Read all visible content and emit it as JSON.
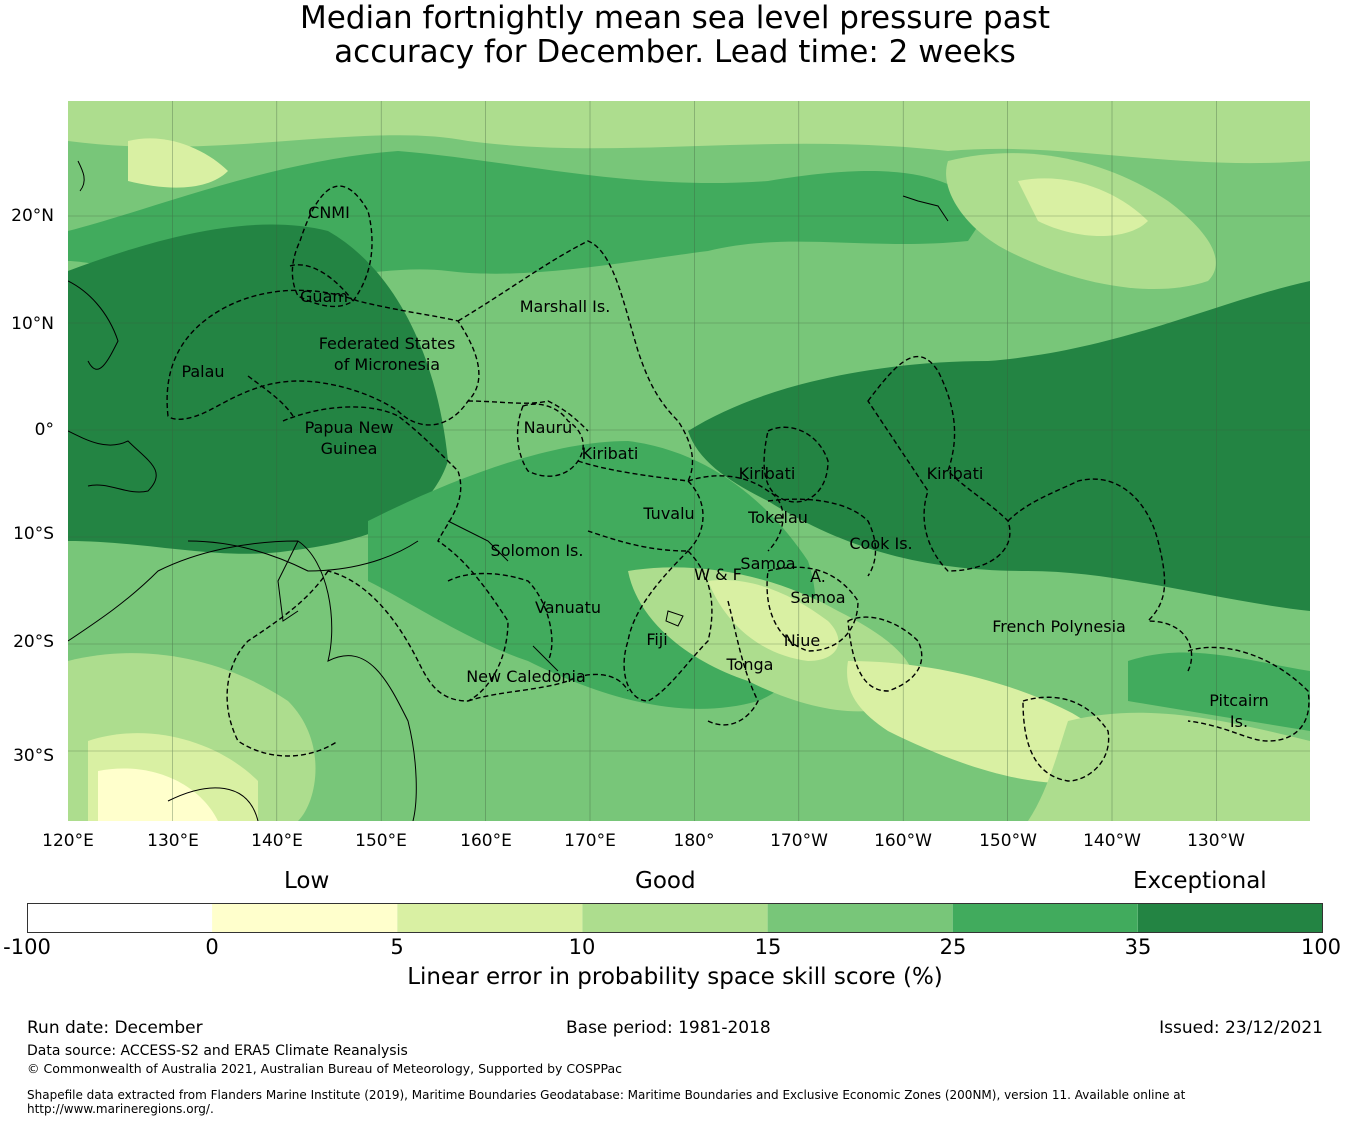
{
  "title_line1": "Median fortnightly mean sea level pressure past",
  "title_line2": "accuracy for December. Lead time: 2 weeks",
  "map": {
    "lon_range": [
      120,
      239
    ],
    "lat_range": [
      -36,
      31
    ],
    "lat_labels": [
      "20°N",
      "10°N",
      "0°",
      "10°S",
      "20°S",
      "30°S"
    ],
    "lon_labels": [
      "120°E",
      "130°E",
      "140°E",
      "150°E",
      "160°E",
      "170°E",
      "180°",
      "170°W",
      "160°W",
      "150°W",
      "140°W",
      "130°W"
    ],
    "regions": [
      {
        "label": "CNMI"
      },
      {
        "label": "Guam"
      },
      {
        "label": "Marshall Is."
      },
      {
        "label": "Federated States"
      },
      {
        "label": "of Micronesia"
      },
      {
        "label": "Palau"
      },
      {
        "label": "Papua New"
      },
      {
        "label": "Guinea"
      },
      {
        "label": "Nauru"
      },
      {
        "label": "Kiribati"
      },
      {
        "label": "Kiribati"
      },
      {
        "label": "Kiribati"
      },
      {
        "label": "Tuvalu"
      },
      {
        "label": "Tokelau"
      },
      {
        "label": "Cook Is."
      },
      {
        "label": "Solomon Is."
      },
      {
        "label": "Samoa"
      },
      {
        "label": "W & F"
      },
      {
        "label": "A."
      },
      {
        "label": "Samoa"
      },
      {
        "label": "Vanuatu"
      },
      {
        "label": "Fiji"
      },
      {
        "label": "Niue"
      },
      {
        "label": "Tonga"
      },
      {
        "label": "French Polynesia"
      },
      {
        "label": "New Caledonia"
      },
      {
        "label": "Pitcairn"
      },
      {
        "label": "Is."
      }
    ]
  },
  "legend": {
    "categories": [
      "Low",
      "Good",
      "Exceptional"
    ],
    "ticks": [
      "-100",
      "0",
      "5",
      "10",
      "15",
      "25",
      "35",
      "100"
    ],
    "colors": [
      "#ffffff",
      "#ffffcc",
      "#d9f0a3",
      "#addd8e",
      "#78c679",
      "#41ab5d",
      "#238443"
    ],
    "label": "Linear error in probability space skill score (%)"
  },
  "footer": {
    "run_date": "Run date: December",
    "base_period": "Base period: 1981-2018",
    "issued": "Issued: 23/12/2021",
    "data_source": "Data source: ACCESS-S2 and ERA5 Climate Reanalysis",
    "copyright": "© Commonwealth of Australia 2021, Australian Bureau of Meteorology, Supported by COSPPac",
    "shapefile_line1": "Shapefile data extracted from Flanders Marine Institute (2019), Maritime Boundaries Geodatabase: Maritime Boundaries and Exclusive Economic Zones (200NM), version 11. Available online at",
    "shapefile_line2": "http://www.marineregions.org/."
  }
}
